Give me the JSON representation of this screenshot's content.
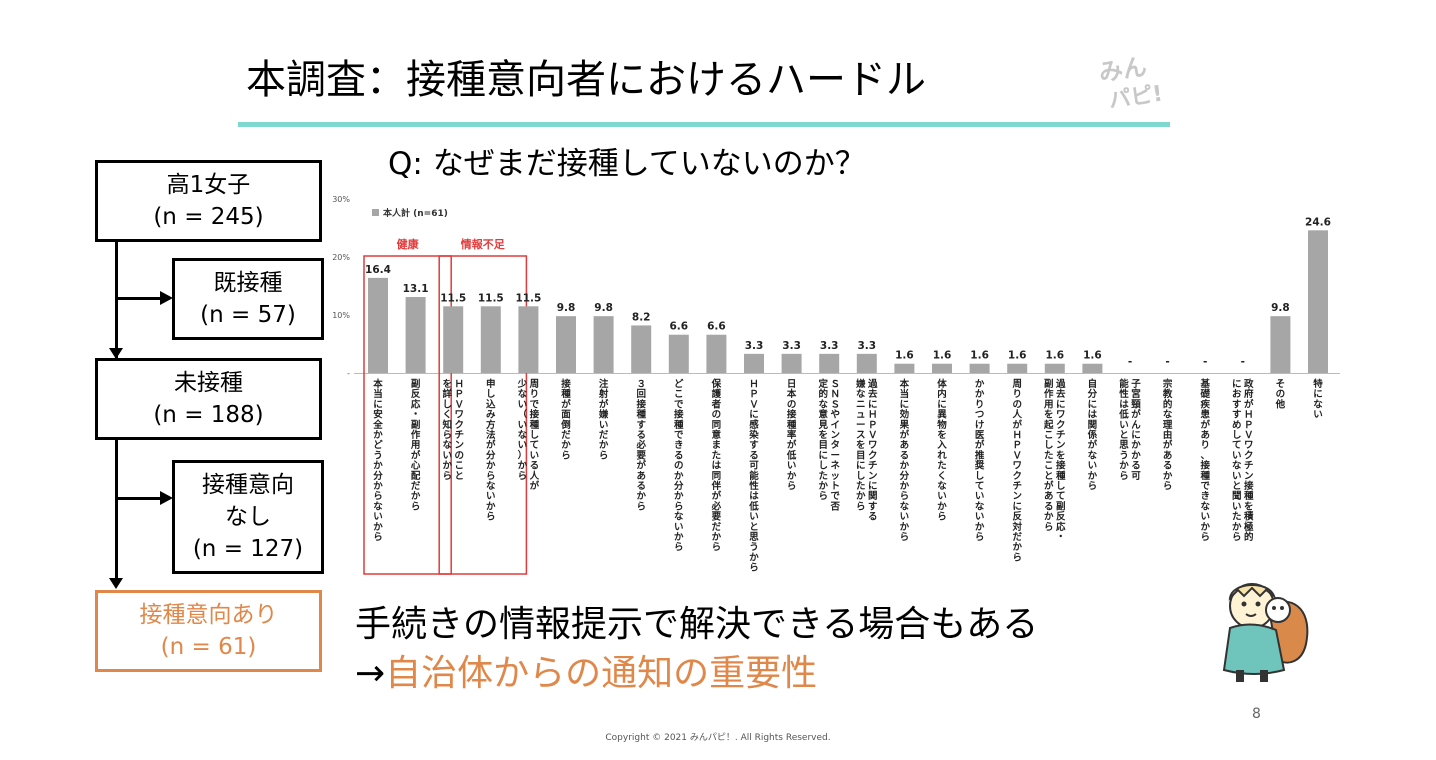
{
  "slide": {
    "title": "本調査：接種意向者におけるハードル",
    "question": "Q: なぜまだ接種していないのか？",
    "conclusion_line1": "手続きの情報提示で解決できる場合もある",
    "conclusion_arrow": "→",
    "conclusion_highlight": "自治体からの通知の重要性",
    "page_number": "8",
    "copyright": "Copyright © 2021 みんパピ！. All Rights Reserved.",
    "logo_text": "みんパピ!"
  },
  "flow": {
    "box1": {
      "label": "高1女子",
      "n": "(n = 245)"
    },
    "box2": {
      "label": "既接種",
      "n": "(n = 57)"
    },
    "box3": {
      "label": "未接種",
      "n": "(n = 188)"
    },
    "box4": {
      "label1": "接種意向",
      "label2": "なし",
      "n": "(n = 127)"
    },
    "box5": {
      "label": "接種意向あり",
      "n": "(n = 61)"
    }
  },
  "colors": {
    "accent_teal": "#7fd8cf",
    "accent_orange": "#e0874a",
    "bar": "#a6a6a6",
    "highlight_red": "#e23b3b"
  },
  "chart_data": {
    "type": "bar",
    "series": [
      {
        "name": "本人計 (n=61)",
        "values": [
          16.4,
          13.1,
          11.5,
          11.5,
          11.5,
          9.8,
          9.8,
          8.2,
          6.6,
          6.6,
          3.3,
          3.3,
          3.3,
          3.3,
          1.6,
          1.6,
          1.6,
          1.6,
          1.6,
          1.6,
          null,
          null,
          null,
          null,
          9.8,
          24.6
        ]
      }
    ],
    "value_labels": [
      "16.4",
      "13.1",
      "11.5",
      "11.5",
      "11.5",
      "9.8",
      "9.8",
      "8.2",
      "6.6",
      "6.6",
      "3.3",
      "3.3",
      "3.3",
      "3.3",
      "1.6",
      "1.6",
      "1.6",
      "1.6",
      "1.6",
      "1.6",
      "-",
      "-",
      "-",
      "-",
      "9.8",
      "24.6"
    ],
    "categories": [
      "本当に安全かどうか分からないから",
      "副反応・副作用が心配だから",
      "ＨＰＶワクチンのことを詳しく知らないから",
      "申し込み方法が分からないから",
      "周りで接種している人が少ない（いない）から",
      "接種が面倒だから",
      "注射が嫌いだから",
      "３回接種する必要があるから",
      "どこで接種できるのか分からないから",
      "保護者の同意または同伴が必要だから",
      "ＨＰＶに感染する可能性は低いと思うから",
      "日本の接種率が低いから",
      "ＳＮＳやインターネットで否定的な意見を目にしたから",
      "過去にＨＰＶワクチンに関する嫌なニュースを目にしたから",
      "本当に効果があるか分からないから",
      "体内に異物を入れたくないから",
      "かかりつけ医が推奨していないから",
      "周りの人がＨＰＶワクチンに反対だから",
      "過去にワクチンを接種して副反応・副作用を起こしたことがあるから",
      "自分には関係がないから",
      "子宮頸がんにかかる可能性は低いと思うから",
      "宗教的な理由があるから",
      "基礎疾患があり、接種できないから",
      "政府がＨＰＶワクチン接種を積極的におすすめしていないと聞いたから",
      "その他",
      "特にない"
    ],
    "yticks": [
      "30%",
      "20%",
      "10%",
      "-"
    ],
    "ylim": [
      0,
      30
    ],
    "highlight_groups": [
      {
        "label": "健康",
        "from": 0,
        "to": 1
      },
      {
        "label": "情報不足",
        "from": 2,
        "to": 3
      }
    ]
  }
}
